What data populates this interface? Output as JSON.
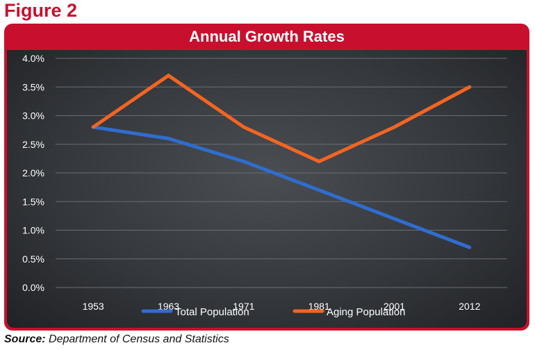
{
  "figure_label": "Figure 2",
  "source_label": "Source:",
  "source_text": "Department of Census and Statistics",
  "chart_data": {
    "type": "line",
    "title": "Annual Growth Rates",
    "categories": [
      "1953",
      "1963",
      "1971",
      "1981",
      "2001",
      "2012"
    ],
    "y_ticks": [
      "0.0%",
      "0.5%",
      "1.0%",
      "1.5%",
      "2.0%",
      "2.5%",
      "3.0%",
      "3.5%",
      "4.0%"
    ],
    "ylim": [
      0,
      4.0
    ],
    "grid": true,
    "legend_position": "bottom",
    "series": [
      {
        "name": "Total Population",
        "color": "#2f6dcf",
        "values": [
          2.8,
          2.6,
          2.2,
          1.7,
          1.2,
          0.7
        ]
      },
      {
        "name": "Aging Population",
        "color": "#f26522",
        "values": [
          2.8,
          3.7,
          2.8,
          2.2,
          2.8,
          3.5
        ]
      }
    ]
  }
}
